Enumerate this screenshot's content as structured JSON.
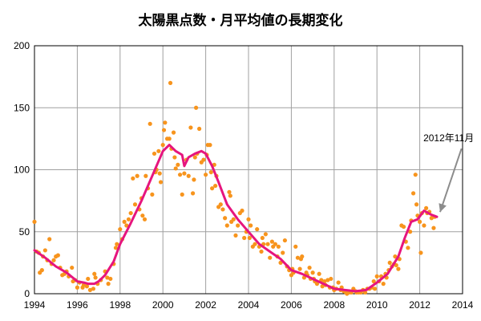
{
  "chart_data": {
    "type": "scatter",
    "title": "太陽黒点数・月平均値の長期変化",
    "xlim": [
      1994,
      2014
    ],
    "ylim": [
      0,
      200
    ],
    "x_ticks": [
      "1994",
      "1996",
      "1998",
      "2000",
      "2002",
      "2004",
      "2006",
      "2008",
      "2010",
      "2012",
      "2014"
    ],
    "y_ticks": [
      "0",
      "50",
      "100",
      "150",
      "200"
    ],
    "grid": true,
    "annotation": "2012年11月",
    "colors": {
      "scatter": "#f7941d",
      "line": "#e6157e",
      "arrow": "#8c8c8c",
      "grid": "#a0a0a0"
    },
    "series": [
      {
        "kind": "scatter",
        "points": [
          [
            1994.0,
            58
          ],
          [
            1994.1,
            34
          ],
          [
            1994.2,
            33
          ],
          [
            1994.25,
            17
          ],
          [
            1994.35,
            19
          ],
          [
            1994.4,
            30
          ],
          [
            1994.5,
            35
          ],
          [
            1994.6,
            27
          ],
          [
            1994.7,
            44
          ],
          [
            1994.8,
            24
          ],
          [
            1994.9,
            27
          ],
          [
            1995.0,
            30
          ],
          [
            1995.1,
            31
          ],
          [
            1995.2,
            21
          ],
          [
            1995.3,
            15
          ],
          [
            1995.4,
            16
          ],
          [
            1995.5,
            18
          ],
          [
            1995.6,
            14
          ],
          [
            1995.75,
            21
          ],
          [
            1995.8,
            10
          ],
          [
            1995.9,
            11
          ],
          [
            1996.0,
            5
          ],
          [
            1996.1,
            9
          ],
          [
            1996.25,
            5
          ],
          [
            1996.3,
            7
          ],
          [
            1996.45,
            6
          ],
          [
            1996.5,
            12
          ],
          [
            1996.6,
            3
          ],
          [
            1996.75,
            4
          ],
          [
            1996.8,
            16
          ],
          [
            1996.85,
            13
          ],
          [
            1996.95,
            8
          ],
          [
            1997.1,
            11
          ],
          [
            1997.3,
            18
          ],
          [
            1997.4,
            13
          ],
          [
            1997.45,
            8
          ],
          [
            1997.55,
            12
          ],
          [
            1997.7,
            24
          ],
          [
            1997.8,
            37
          ],
          [
            1997.85,
            40
          ],
          [
            1998.0,
            52
          ],
          [
            1998.1,
            44
          ],
          [
            1998.2,
            58
          ],
          [
            1998.3,
            55
          ],
          [
            1998.4,
            60
          ],
          [
            1998.5,
            65
          ],
          [
            1998.6,
            93
          ],
          [
            1998.7,
            72
          ],
          [
            1998.8,
            95
          ],
          [
            1998.9,
            68
          ],
          [
            1999.0,
            77
          ],
          [
            1999.05,
            63
          ],
          [
            1999.15,
            60
          ],
          [
            1999.2,
            95
          ],
          [
            1999.3,
            85
          ],
          [
            1999.4,
            137
          ],
          [
            1999.5,
            80
          ],
          [
            1999.6,
            113
          ],
          [
            1999.65,
            98
          ],
          [
            1999.7,
            100
          ],
          [
            1999.8,
            115
          ],
          [
            1999.85,
            97
          ],
          [
            1999.9,
            90
          ],
          [
            2000.0,
            120
          ],
          [
            2000.05,
            132
          ],
          [
            2000.1,
            138
          ],
          [
            2000.2,
            125
          ],
          [
            2000.3,
            125
          ],
          [
            2000.35,
            170
          ],
          [
            2000.4,
            117
          ],
          [
            2000.5,
            130
          ],
          [
            2000.55,
            110
          ],
          [
            2000.6,
            101
          ],
          [
            2000.7,
            104
          ],
          [
            2000.8,
            96
          ],
          [
            2000.9,
            80
          ],
          [
            2001.0,
            97
          ],
          [
            2001.1,
            108
          ],
          [
            2001.2,
            95
          ],
          [
            2001.3,
            134
          ],
          [
            2001.4,
            81
          ],
          [
            2001.45,
            92
          ],
          [
            2001.5,
            110
          ],
          [
            2001.55,
            150
          ],
          [
            2001.6,
            113
          ],
          [
            2001.7,
            133
          ],
          [
            2001.8,
            106
          ],
          [
            2001.9,
            108
          ],
          [
            2002.0,
            96
          ],
          [
            2002.05,
            112
          ],
          [
            2002.1,
            120
          ],
          [
            2002.2,
            120
          ],
          [
            2002.25,
            98
          ],
          [
            2002.3,
            85
          ],
          [
            2002.4,
            104
          ],
          [
            2002.45,
            87
          ],
          [
            2002.5,
            95
          ],
          [
            2002.6,
            70
          ],
          [
            2002.7,
            72
          ],
          [
            2002.8,
            68
          ],
          [
            2002.9,
            61
          ],
          [
            2003.0,
            55
          ],
          [
            2003.1,
            82
          ],
          [
            2003.15,
            79
          ],
          [
            2003.2,
            58
          ],
          [
            2003.3,
            60
          ],
          [
            2003.4,
            47
          ],
          [
            2003.5,
            55
          ],
          [
            2003.6,
            65
          ],
          [
            2003.7,
            67
          ],
          [
            2003.8,
            45
          ],
          [
            2003.9,
            50
          ],
          [
            2004.0,
            60
          ],
          [
            2004.05,
            45
          ],
          [
            2004.1,
            55
          ],
          [
            2004.2,
            38
          ],
          [
            2004.3,
            40
          ],
          [
            2004.4,
            52
          ],
          [
            2004.5,
            38
          ],
          [
            2004.6,
            34
          ],
          [
            2004.65,
            45
          ],
          [
            2004.7,
            40
          ],
          [
            2004.8,
            48
          ],
          [
            2004.9,
            40
          ],
          [
            2005.0,
            29
          ],
          [
            2005.1,
            42
          ],
          [
            2005.15,
            38
          ],
          [
            2005.25,
            40
          ],
          [
            2005.35,
            30
          ],
          [
            2005.4,
            38
          ],
          [
            2005.5,
            25
          ],
          [
            2005.6,
            33
          ],
          [
            2005.7,
            43
          ],
          [
            2005.8,
            22
          ],
          [
            2005.9,
            19
          ],
          [
            2006.0,
            15
          ],
          [
            2006.05,
            20
          ],
          [
            2006.1,
            17
          ],
          [
            2006.2,
            38
          ],
          [
            2006.3,
            29
          ],
          [
            2006.4,
            20
          ],
          [
            2006.45,
            28
          ],
          [
            2006.5,
            30
          ],
          [
            2006.6,
            13
          ],
          [
            2006.7,
            17
          ],
          [
            2006.75,
            15
          ],
          [
            2006.85,
            21
          ],
          [
            2006.9,
            12
          ],
          [
            2007.0,
            17
          ],
          [
            2007.05,
            12
          ],
          [
            2007.1,
            10
          ],
          [
            2007.2,
            8
          ],
          [
            2007.3,
            16
          ],
          [
            2007.4,
            11
          ],
          [
            2007.45,
            6
          ],
          [
            2007.55,
            10
          ],
          [
            2007.6,
            7
          ],
          [
            2007.7,
            11
          ],
          [
            2007.8,
            5
          ],
          [
            2007.85,
            12
          ],
          [
            2007.95,
            5
          ],
          [
            2008.0,
            3
          ],
          [
            2008.1,
            4
          ],
          [
            2008.2,
            9
          ],
          [
            2008.3,
            3
          ],
          [
            2008.35,
            5
          ],
          [
            2008.45,
            2
          ],
          [
            2008.55,
            1
          ],
          [
            2008.6,
            0
          ],
          [
            2008.7,
            1
          ],
          [
            2008.8,
            1
          ],
          [
            2008.9,
            4
          ],
          [
            2009.0,
            2
          ],
          [
            2009.05,
            1
          ],
          [
            2009.15,
            1
          ],
          [
            2009.25,
            1
          ],
          [
            2009.35,
            3
          ],
          [
            2009.45,
            1
          ],
          [
            2009.55,
            4
          ],
          [
            2009.65,
            4
          ],
          [
            2009.75,
            5
          ],
          [
            2009.85,
            10
          ],
          [
            2009.9,
            4
          ],
          [
            2010.0,
            14
          ],
          [
            2010.1,
            10
          ],
          [
            2010.2,
            14
          ],
          [
            2010.3,
            8
          ],
          [
            2010.4,
            16
          ],
          [
            2010.45,
            13
          ],
          [
            2010.55,
            19
          ],
          [
            2010.6,
            25
          ],
          [
            2010.7,
            22
          ],
          [
            2010.8,
            24
          ],
          [
            2010.85,
            30
          ],
          [
            2010.9,
            23
          ],
          [
            2011.0,
            20
          ],
          [
            2011.05,
            28
          ],
          [
            2011.15,
            55
          ],
          [
            2011.25,
            54
          ],
          [
            2011.35,
            42
          ],
          [
            2011.45,
            37
          ],
          [
            2011.55,
            50
          ],
          [
            2011.6,
            59
          ],
          [
            2011.7,
            81
          ],
          [
            2011.8,
            96
          ],
          [
            2011.85,
            72
          ],
          [
            2011.9,
            63
          ],
          [
            2012.0,
            58
          ],
          [
            2012.05,
            33
          ],
          [
            2012.1,
            65
          ],
          [
            2012.2,
            55
          ],
          [
            2012.3,
            69
          ],
          [
            2012.35,
            65
          ],
          [
            2012.45,
            66
          ],
          [
            2012.55,
            61
          ],
          [
            2012.6,
            62
          ],
          [
            2012.65,
            53
          ],
          [
            2012.7,
            62
          ]
        ]
      },
      {
        "kind": "line",
        "points": [
          [
            1994.0,
            35
          ],
          [
            1994.5,
            29
          ],
          [
            1995.0,
            22
          ],
          [
            1995.5,
            17
          ],
          [
            1996.0,
            10
          ],
          [
            1996.3,
            9
          ],
          [
            1996.5,
            8
          ],
          [
            1996.8,
            8
          ],
          [
            1997.0,
            10
          ],
          [
            1997.3,
            15
          ],
          [
            1997.7,
            26
          ],
          [
            1998.0,
            40
          ],
          [
            1998.5,
            57
          ],
          [
            1999.0,
            75
          ],
          [
            1999.5,
            95
          ],
          [
            2000.0,
            115
          ],
          [
            2000.3,
            120
          ],
          [
            2000.6,
            115
          ],
          [
            2000.9,
            112
          ],
          [
            2001.0,
            103
          ],
          [
            2001.2,
            110
          ],
          [
            2001.5,
            113
          ],
          [
            2001.8,
            115
          ],
          [
            2002.0,
            113
          ],
          [
            2002.3,
            103
          ],
          [
            2002.6,
            90
          ],
          [
            2003.0,
            72
          ],
          [
            2003.5,
            60
          ],
          [
            2004.0,
            50
          ],
          [
            2004.5,
            40
          ],
          [
            2005.0,
            34
          ],
          [
            2005.5,
            28
          ],
          [
            2006.0,
            19
          ],
          [
            2006.5,
            16
          ],
          [
            2007.0,
            12
          ],
          [
            2007.5,
            8
          ],
          [
            2008.0,
            4
          ],
          [
            2008.5,
            3
          ],
          [
            2009.0,
            2
          ],
          [
            2009.5,
            3
          ],
          [
            2010.0,
            9
          ],
          [
            2010.5,
            16
          ],
          [
            2011.0,
            30
          ],
          [
            2011.3,
            45
          ],
          [
            2011.6,
            58
          ],
          [
            2011.9,
            60
          ],
          [
            2012.2,
            67
          ],
          [
            2012.5,
            64
          ],
          [
            2012.8,
            62
          ]
        ]
      }
    ]
  }
}
